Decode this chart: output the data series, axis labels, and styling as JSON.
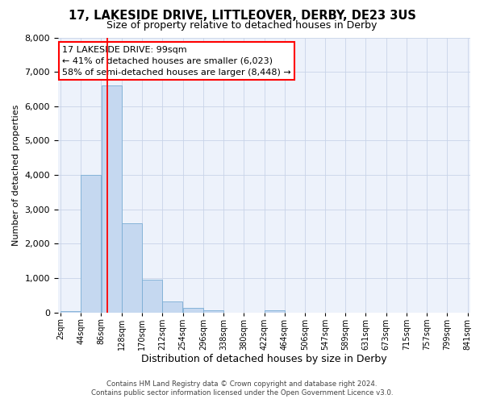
{
  "title1": "17, LAKESIDE DRIVE, LITTLEOVER, DERBY, DE23 3US",
  "title2": "Size of property relative to detached houses in Derby",
  "xlabel": "Distribution of detached houses by size in Derby",
  "ylabel": "Number of detached properties",
  "bar_color": "#c5d8f0",
  "bar_edgecolor": "#7aadd4",
  "bg_color": "#edf2fb",
  "grid_color": "#c8d4e8",
  "redline_x": 99,
  "annotation_title": "17 LAKESIDE DRIVE: 99sqm",
  "annotation_line1": "← 41% of detached houses are smaller (6,023)",
  "annotation_line2": "58% of semi-detached houses are larger (8,448) →",
  "footer1": "Contains HM Land Registry data © Crown copyright and database right 2024.",
  "footer2": "Contains public sector information licensed under the Open Government Licence v3.0.",
  "bin_edges": [
    2,
    44,
    86,
    128,
    170,
    212,
    254,
    296,
    338,
    380,
    422,
    464,
    506,
    547,
    589,
    631,
    673,
    715,
    757,
    799,
    841
  ],
  "bar_heights": [
    45,
    4000,
    6600,
    2600,
    950,
    320,
    130,
    50,
    0,
    0,
    50,
    0,
    0,
    0,
    0,
    0,
    0,
    0,
    0,
    0
  ],
  "ylim": [
    0,
    8000
  ],
  "yticks": [
    0,
    1000,
    2000,
    3000,
    4000,
    5000,
    6000,
    7000,
    8000
  ]
}
